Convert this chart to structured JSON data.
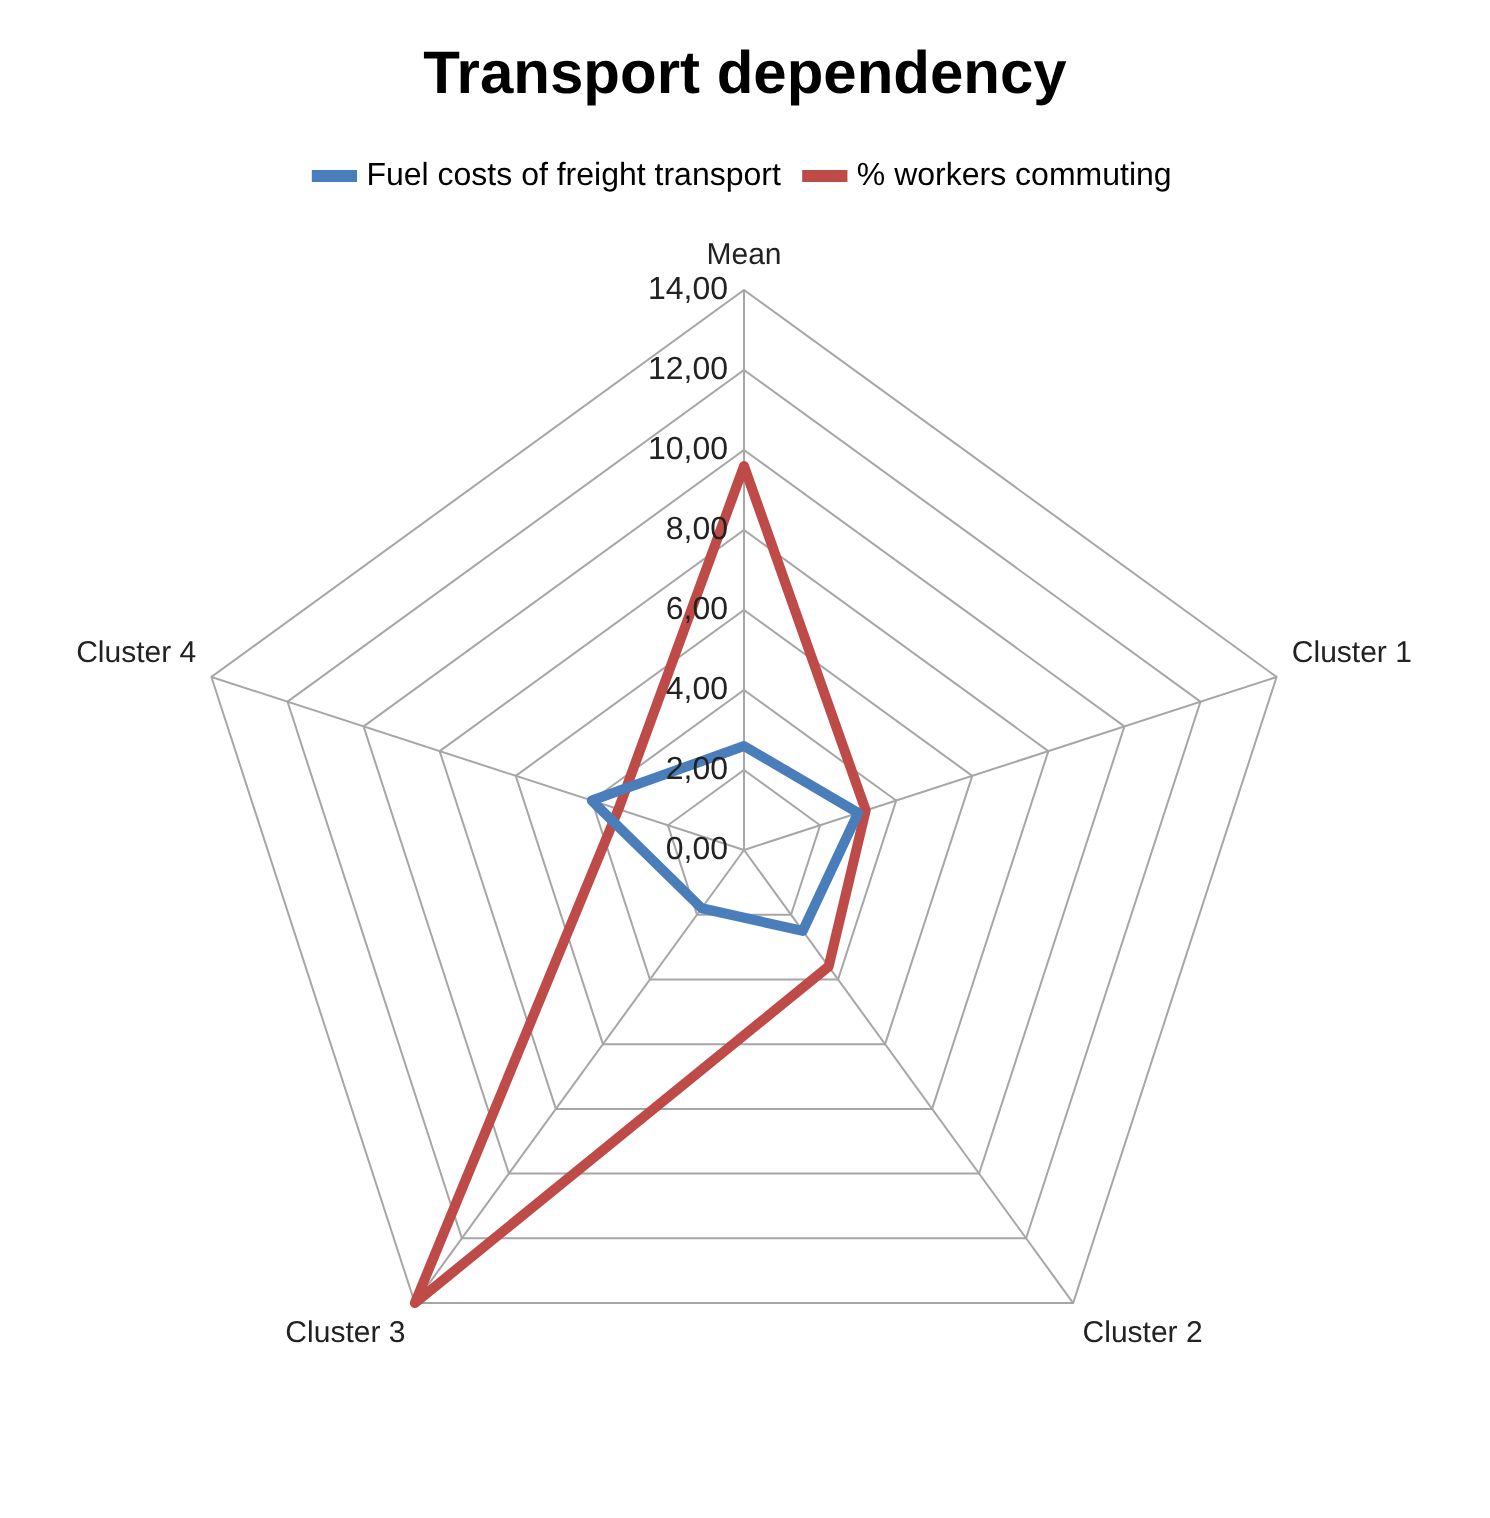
{
  "chart_data": {
    "type": "radar",
    "title": "Transport dependency",
    "categories": [
      "Mean",
      "Cluster 1",
      "Cluster 2",
      "Cluster 3",
      "Cluster 4"
    ],
    "series": [
      {
        "name": "Fuel costs of freight transport",
        "color": "#4a7ebb",
        "values": [
          2.6,
          3.0,
          2.5,
          1.8,
          4.0
        ]
      },
      {
        "name": "% workers commuting",
        "color": "#be4b48",
        "values": [
          9.6,
          3.2,
          3.6,
          14.0,
          3.3
        ]
      }
    ],
    "ylim": [
      0,
      14
    ],
    "yticks": [
      {
        "value": 0,
        "label": "0,00"
      },
      {
        "value": 2,
        "label": "2,00"
      },
      {
        "value": 4,
        "label": "4,00"
      },
      {
        "value": 6,
        "label": "6,00"
      },
      {
        "value": 8,
        "label": "8,00"
      },
      {
        "value": 10,
        "label": "10,00"
      },
      {
        "value": 12,
        "label": "12,00"
      },
      {
        "value": 14,
        "label": "14,00"
      }
    ],
    "grid": true,
    "legend": "top",
    "marker": "none",
    "line_style": "solid"
  }
}
